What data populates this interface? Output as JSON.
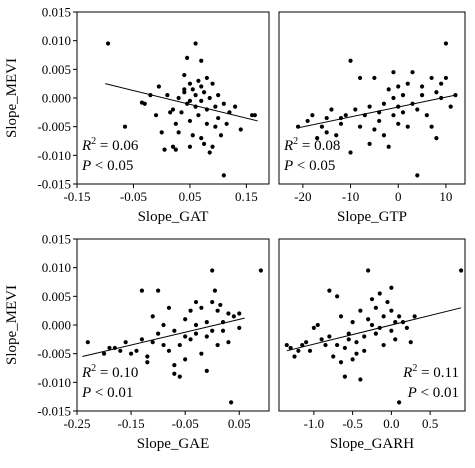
{
  "chart_data": [
    {
      "type": "scatter",
      "xlabel": "Slope_GAT",
      "ylabel": "Slope_MEVI",
      "xlim": [
        -0.15,
        0.19
      ],
      "ylim": [
        -0.015,
        0.015
      ],
      "xticks": [
        "-0.15",
        "-0.05",
        "0.05",
        "0.15"
      ],
      "xtick_values": [
        -0.15,
        -0.05,
        0.05,
        0.15
      ],
      "yticks": [
        "0.015",
        "0.010",
        "0.005",
        "0.000",
        "-0.005",
        "-0.010",
        "-0.015"
      ],
      "ytick_values": [
        0.015,
        0.01,
        0.005,
        0.0,
        -0.005,
        -0.01,
        -0.015
      ],
      "annotation": {
        "r2": "0.06",
        "p": "< 0.05",
        "position": "bottom-left"
      },
      "fit_line": {
        "x": [
          -0.1,
          0.17
        ],
        "y": [
          0.0025,
          -0.004
        ]
      },
      "points": [
        [
          -0.095,
          0.0095
        ],
        [
          -0.065,
          -0.005
        ],
        [
          -0.035,
          -0.0008
        ],
        [
          -0.03,
          -0.001
        ],
        [
          -0.02,
          0.0005
        ],
        [
          -0.01,
          -0.003
        ],
        [
          -0.005,
          0.002
        ],
        [
          0.0,
          -0.006
        ],
        [
          0.005,
          -0.009
        ],
        [
          0.01,
          0.0005
        ],
        [
          0.015,
          -0.0025
        ],
        [
          0.02,
          -0.0085
        ],
        [
          0.02,
          -0.002
        ],
        [
          0.025,
          -0.009
        ],
        [
          0.03,
          0.0
        ],
        [
          0.03,
          -0.006
        ],
        [
          0.035,
          -0.0025
        ],
        [
          0.04,
          0.004
        ],
        [
          0.04,
          0.001
        ],
        [
          0.045,
          0.007
        ],
        [
          0.045,
          -0.001
        ],
        [
          0.05,
          0.0025
        ],
        [
          0.05,
          -0.0005
        ],
        [
          0.05,
          -0.004
        ],
        [
          0.055,
          0.0015
        ],
        [
          0.055,
          -0.0065
        ],
        [
          0.06,
          0.0095
        ],
        [
          0.06,
          -0.0015
        ],
        [
          0.06,
          0.0005
        ],
        [
          0.065,
          0.003
        ],
        [
          0.065,
          -0.003
        ],
        [
          0.07,
          0.0065
        ],
        [
          0.07,
          0.002
        ],
        [
          0.07,
          -0.0005
        ],
        [
          0.075,
          -0.008
        ],
        [
          0.075,
          0.001
        ],
        [
          0.08,
          0.0035
        ],
        [
          0.08,
          -0.002
        ],
        [
          0.08,
          -0.0045
        ],
        [
          0.085,
          0.0
        ],
        [
          0.085,
          -0.0095
        ],
        [
          0.09,
          -0.0085
        ],
        [
          0.09,
          0.0025
        ],
        [
          0.095,
          -0.0015
        ],
        [
          0.095,
          -0.005
        ],
        [
          0.1,
          0.0005
        ],
        [
          0.1,
          -0.0035
        ],
        [
          0.105,
          -0.0065
        ],
        [
          0.11,
          -0.001
        ],
        [
          0.11,
          -0.0135
        ],
        [
          0.115,
          -0.0045
        ],
        [
          0.12,
          -0.0025
        ],
        [
          0.13,
          -0.0015
        ],
        [
          0.14,
          -0.0055
        ],
        [
          0.16,
          -0.003
        ],
        [
          0.165,
          -0.003
        ],
        [
          0.07,
          -0.007
        ],
        [
          0.05,
          -0.0085
        ],
        [
          0.04,
          0.0015
        ],
        [
          0.025,
          -0.0045
        ]
      ]
    },
    {
      "type": "scatter",
      "xlabel": "Slope_GTP",
      "ylabel": "",
      "xlim": [
        -25,
        14
      ],
      "ylim": [
        -0.015,
        0.015
      ],
      "xticks": [
        "-20",
        "-10",
        "0",
        "10"
      ],
      "xtick_values": [
        -20,
        -10,
        0,
        10
      ],
      "yticks": [],
      "ytick_values": [],
      "annotation": {
        "r2": "0.08",
        "p": "< 0.05",
        "position": "bottom-left"
      },
      "fit_line": {
        "x": [
          -21,
          12
        ],
        "y": [
          -0.0052,
          0.0005
        ]
      },
      "points": [
        [
          -21,
          -0.005
        ],
        [
          -19,
          -0.004
        ],
        [
          -18,
          -0.003
        ],
        [
          -17,
          -0.007
        ],
        [
          -16,
          -0.005
        ],
        [
          -15,
          -0.0035
        ],
        [
          -14,
          -0.002
        ],
        [
          -13,
          -0.0065
        ],
        [
          -12,
          -0.0035
        ],
        [
          -11,
          -0.003
        ],
        [
          -10,
          0.0065
        ],
        [
          -10,
          -0.0095
        ],
        [
          -9,
          -0.002
        ],
        [
          -8,
          -0.005
        ],
        [
          -8,
          0.0035
        ],
        [
          -7,
          -0.003
        ],
        [
          -6,
          -0.008
        ],
        [
          -6,
          -0.0015
        ],
        [
          -5,
          -0.0055
        ],
        [
          -4,
          -0.0025
        ],
        [
          -4,
          -0.004
        ],
        [
          -3,
          -0.001
        ],
        [
          -3,
          -0.0065
        ],
        [
          -2,
          0.0015
        ],
        [
          -2,
          -0.0085
        ],
        [
          -1,
          -0.003
        ],
        [
          -1,
          0.0
        ],
        [
          0,
          -0.0015
        ],
        [
          0,
          0.002
        ],
        [
          0,
          -0.0045
        ],
        [
          1,
          0.0005
        ],
        [
          1,
          -0.0025
        ],
        [
          2,
          0.0025
        ],
        [
          2,
          -0.005
        ],
        [
          3,
          0.0045
        ],
        [
          3,
          -0.001
        ],
        [
          4,
          -0.002
        ],
        [
          4,
          -0.0135
        ],
        [
          5,
          0.0005
        ],
        [
          5,
          0.002
        ],
        [
          6,
          -0.003
        ],
        [
          7,
          0.0035
        ],
        [
          7,
          -0.005
        ],
        [
          8,
          0.001
        ],
        [
          8,
          -0.007
        ],
        [
          9,
          0.0025
        ],
        [
          9,
          0.0
        ],
        [
          10,
          0.0095
        ],
        [
          10,
          0.0035
        ],
        [
          11,
          -0.0015
        ],
        [
          12,
          0.0005
        ],
        [
          -12,
          -0.0045
        ],
        [
          -15,
          -0.006
        ],
        [
          -5,
          0.0035
        ],
        [
          -1,
          0.0045
        ]
      ]
    },
    {
      "type": "scatter",
      "xlabel": "Slope_GAE",
      "ylabel": "Slope_MEVI",
      "xlim": [
        -0.25,
        0.105
      ],
      "ylim": [
        -0.015,
        0.015
      ],
      "xticks": [
        "-0.25",
        "-0.15",
        "-0.05",
        "0.05"
      ],
      "xtick_values": [
        -0.25,
        -0.15,
        -0.05,
        0.05
      ],
      "yticks": [
        "0.015",
        "0.010",
        "0.005",
        "0.000",
        "-0.005",
        "-0.010",
        "-0.015"
      ],
      "ytick_values": [
        0.015,
        0.01,
        0.005,
        0.0,
        -0.005,
        -0.01,
        -0.015
      ],
      "annotation": {
        "r2": "0.10",
        "p": "< 0.01",
        "position": "bottom-left"
      },
      "fit_line": {
        "x": [
          -0.24,
          0.06
        ],
        "y": [
          -0.0055,
          0.0012
        ]
      },
      "points": [
        [
          -0.23,
          -0.003
        ],
        [
          -0.2,
          -0.005
        ],
        [
          -0.18,
          -0.004
        ],
        [
          -0.17,
          -0.0045
        ],
        [
          -0.16,
          -0.003
        ],
        [
          -0.15,
          -0.005
        ],
        [
          -0.14,
          -0.0045
        ],
        [
          -0.13,
          0.006
        ],
        [
          -0.13,
          -0.0025
        ],
        [
          -0.12,
          -0.0055
        ],
        [
          -0.11,
          0.0015
        ],
        [
          -0.11,
          -0.003
        ],
        [
          -0.1,
          -0.0015
        ],
        [
          -0.1,
          0.006
        ],
        [
          -0.09,
          0.0
        ],
        [
          -0.09,
          -0.0035
        ],
        [
          -0.08,
          -0.0045
        ],
        [
          -0.08,
          0.003
        ],
        [
          -0.07,
          -0.007
        ],
        [
          -0.07,
          -0.001
        ],
        [
          -0.06,
          -0.009
        ],
        [
          -0.06,
          -0.0035
        ],
        [
          -0.05,
          0.001
        ],
        [
          -0.05,
          -0.002
        ],
        [
          -0.04,
          0.0025
        ],
        [
          -0.04,
          -0.0025
        ],
        [
          -0.03,
          -0.0015
        ],
        [
          -0.03,
          0.0
        ],
        [
          -0.02,
          -0.005
        ],
        [
          -0.02,
          0.003
        ],
        [
          -0.01,
          0.0005
        ],
        [
          -0.01,
          -0.002
        ],
        [
          0.0,
          0.0095
        ],
        [
          0.0,
          0.004
        ],
        [
          0.0,
          -0.001
        ],
        [
          0.01,
          -0.0035
        ],
        [
          0.01,
          0.0025
        ],
        [
          0.02,
          0.0005
        ],
        [
          0.02,
          -0.001
        ],
        [
          0.03,
          -0.003
        ],
        [
          0.03,
          0.002
        ],
        [
          0.035,
          -0.0135
        ],
        [
          0.04,
          0.0015
        ],
        [
          0.05,
          0.002
        ],
        [
          0.05,
          -0.0005
        ],
        [
          0.09,
          0.0095
        ],
        [
          -0.07,
          -0.0085
        ],
        [
          -0.05,
          -0.006
        ],
        [
          -0.03,
          0.004
        ],
        [
          -0.01,
          -0.008
        ],
        [
          0.005,
          0.006
        ],
        [
          0.015,
          0.0035
        ],
        [
          -0.12,
          -0.0065
        ],
        [
          -0.19,
          -0.004
        ]
      ]
    },
    {
      "type": "scatter",
      "xlabel": "Slope_GARH",
      "ylabel": "",
      "xlim": [
        -1.45,
        0.95
      ],
      "ylim": [
        -0.015,
        0.015
      ],
      "xticks": [
        "-1.0",
        "-0.5",
        "0.0",
        "0.5"
      ],
      "xtick_values": [
        -1.0,
        -0.5,
        0.0,
        0.5
      ],
      "yticks": [],
      "ytick_values": [],
      "annotation": {
        "r2": "0.11",
        "p": "< 0.01",
        "position": "bottom-right"
      },
      "fit_line": {
        "x": [
          -1.35,
          0.9
        ],
        "y": [
          -0.0045,
          0.003
        ]
      },
      "points": [
        [
          -1.35,
          -0.0035
        ],
        [
          -1.3,
          -0.004
        ],
        [
          -1.2,
          -0.0045
        ],
        [
          -1.15,
          -0.0035
        ],
        [
          -1.1,
          -0.003
        ],
        [
          -1.05,
          -0.0045
        ],
        [
          -1.0,
          -0.0005
        ],
        [
          -0.95,
          0.0
        ],
        [
          -0.9,
          -0.0025
        ],
        [
          -0.85,
          -0.0035
        ],
        [
          -0.8,
          0.006
        ],
        [
          -0.8,
          -0.002
        ],
        [
          -0.75,
          -0.0055
        ],
        [
          -0.7,
          0.005
        ],
        [
          -0.7,
          -0.0035
        ],
        [
          -0.65,
          0.0015
        ],
        [
          -0.6,
          -0.004
        ],
        [
          -0.6,
          -0.009
        ],
        [
          -0.55,
          -0.0015
        ],
        [
          -0.5,
          0.0005
        ],
        [
          -0.5,
          -0.006
        ],
        [
          -0.45,
          -0.003
        ],
        [
          -0.4,
          0.0025
        ],
        [
          -0.4,
          -0.0095
        ],
        [
          -0.35,
          -0.002
        ],
        [
          -0.3,
          0.001
        ],
        [
          -0.3,
          0.0095
        ],
        [
          -0.25,
          0.0
        ],
        [
          -0.2,
          -0.0015
        ],
        [
          -0.2,
          0.003
        ],
        [
          -0.15,
          -0.0005
        ],
        [
          -0.1,
          0.0015
        ],
        [
          -0.1,
          -0.0035
        ],
        [
          -0.05,
          0.004
        ],
        [
          0.0,
          -0.001
        ],
        [
          0.0,
          0.0025
        ],
        [
          0.05,
          0.0005
        ],
        [
          0.05,
          -0.0025
        ],
        [
          0.1,
          -0.0135
        ],
        [
          0.1,
          0.0015
        ],
        [
          0.15,
          0.0005
        ],
        [
          0.2,
          -0.0005
        ],
        [
          0.25,
          -0.003
        ],
        [
          0.3,
          0.0015
        ],
        [
          0.9,
          0.0095
        ],
        [
          -0.65,
          -0.0065
        ],
        [
          -0.45,
          -0.005
        ],
        [
          -0.25,
          0.0045
        ],
        [
          -0.15,
          0.0055
        ],
        [
          -0.35,
          -0.0045
        ],
        [
          0.0,
          0.0065
        ],
        [
          -0.55,
          -0.0025
        ],
        [
          -1.25,
          -0.0055
        ]
      ]
    }
  ]
}
